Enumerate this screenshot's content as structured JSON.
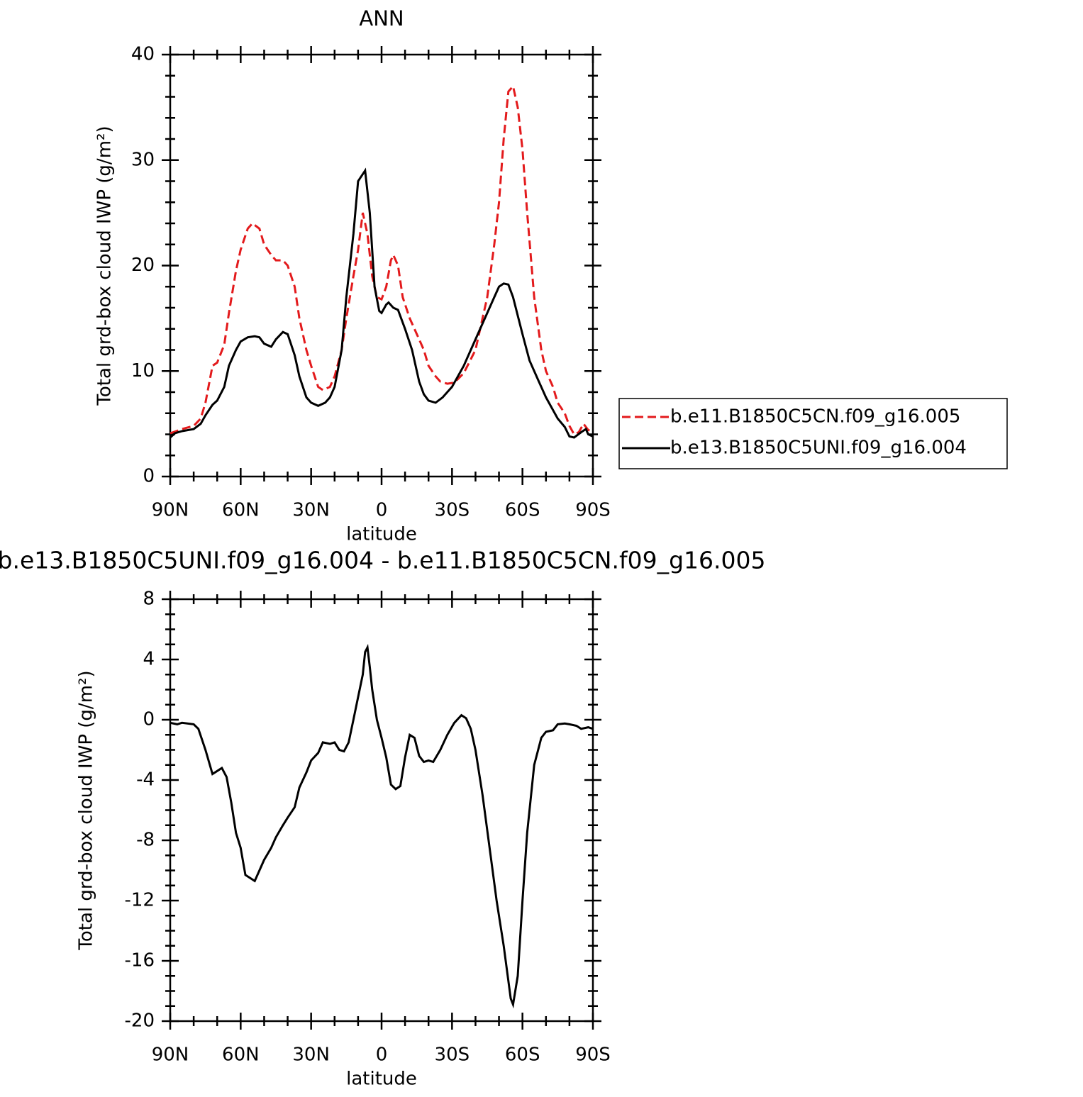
{
  "chart_data": [
    {
      "type": "line",
      "title": "ANN",
      "x_label": "latitude",
      "y_label": "Total grd-box cloud IWP (g/m²)",
      "xlim": [
        90,
        -90
      ],
      "xticks": [
        {
          "value": 90,
          "label": "90N"
        },
        {
          "value": 60,
          "label": "60N"
        },
        {
          "value": 30,
          "label": "30N"
        },
        0,
        {
          "value": -30,
          "label": "30S"
        },
        {
          "value": -60,
          "label": "60S"
        },
        {
          "value": -90,
          "label": "90S"
        }
      ],
      "ylim": [
        0,
        40
      ],
      "yticks": [
        0,
        10,
        20,
        30,
        40
      ],
      "legend": "right",
      "series": [
        {
          "name": "b.e11.B1850C5CN.f09_g16.005",
          "color": "#e31a1c",
          "dash": true,
          "x": [
            90,
            85,
            80,
            77,
            75,
            72,
            70,
            67,
            65,
            62,
            60,
            57,
            55,
            52,
            50,
            47,
            45,
            42,
            40,
            37,
            35,
            32,
            30,
            27,
            25,
            22,
            20,
            17,
            15,
            12,
            10,
            8,
            6,
            4,
            2,
            0,
            -2,
            -4,
            -5,
            -7,
            -9,
            -12,
            -15,
            -18,
            -20,
            -23,
            -25,
            -28,
            -31,
            -35,
            -40,
            -45,
            -48,
            -50,
            -52,
            -54,
            -56,
            -58,
            -60,
            -62,
            -65,
            -68,
            -70,
            -73,
            -75,
            -78,
            -80,
            -82,
            -84,
            -86,
            -88,
            -90
          ],
          "values": [
            4.1,
            4.5,
            4.8,
            5.5,
            7,
            10.5,
            10.8,
            12.5,
            15.5,
            19.5,
            21.5,
            23.5,
            24,
            23.5,
            22,
            21,
            20.5,
            20.5,
            20,
            18,
            15,
            12,
            10.5,
            8.5,
            8.2,
            8.5,
            9.5,
            12,
            15,
            19,
            21.5,
            25,
            23,
            19,
            17,
            16.8,
            18,
            20.5,
            21,
            20,
            17,
            15,
            13.5,
            12,
            10.5,
            9.5,
            9,
            8.8,
            8.9,
            9.8,
            12,
            17,
            22,
            26,
            32,
            36.5,
            37,
            35,
            31,
            25,
            17,
            12,
            10,
            8.5,
            7,
            6,
            4.8,
            4,
            4.2,
            5,
            4.4,
            4.3
          ]
        },
        {
          "name": "b.e13.B1850C5UNI.f09_g16.004",
          "color": "#000000",
          "dash": false,
          "x": [
            90,
            88,
            85,
            80,
            77,
            75,
            72,
            70,
            67,
            65,
            62,
            60,
            57,
            54,
            52,
            50,
            47,
            45,
            42,
            40,
            37,
            35,
            32,
            30,
            27,
            24,
            22,
            20,
            17,
            15,
            12,
            10,
            7,
            5,
            3,
            1,
            0,
            -2,
            -3,
            -5,
            -7,
            -10,
            -13,
            -16,
            -18,
            -20,
            -23,
            -26,
            -30,
            -35,
            -40,
            -45,
            -48,
            -50,
            -52,
            -54,
            -56,
            -60,
            -63,
            -67,
            -70,
            -75,
            -78,
            -80,
            -82,
            -85,
            -87,
            -88,
            -90
          ],
          "values": [
            3.7,
            4.1,
            4.3,
            4.5,
            5,
            5.8,
            6.8,
            7.2,
            8.5,
            10.5,
            12,
            12.8,
            13.2,
            13.3,
            13.2,
            12.6,
            12.3,
            13,
            13.7,
            13.5,
            11.5,
            9.5,
            7.5,
            7,
            6.7,
            7,
            7.5,
            8.5,
            12,
            17,
            23,
            28,
            29,
            25,
            18,
            15.7,
            15.5,
            16.3,
            16.5,
            16,
            15.8,
            14,
            12,
            9,
            7.8,
            7.2,
            7,
            7.5,
            8.5,
            10.5,
            13,
            15.5,
            17,
            18,
            18.3,
            18.2,
            17,
            13.5,
            11,
            9,
            7.5,
            5.5,
            4.7,
            3.8,
            3.7,
            4.2,
            4.5,
            4,
            3.8
          ]
        }
      ]
    },
    {
      "type": "line",
      "title": "b.e13.B1850C5UNI.f09_g16.004 - b.e11.B1850C5CN.f09_g16.005",
      "x_label": "latitude",
      "y_label": "Total grd-box cloud IWP (g/m²)",
      "xlim": [
        90,
        -90
      ],
      "xticks": [
        {
          "value": 90,
          "label": "90N"
        },
        {
          "value": 60,
          "label": "60N"
        },
        {
          "value": 30,
          "label": "30N"
        },
        0,
        {
          "value": -30,
          "label": "30S"
        },
        {
          "value": -60,
          "label": "60S"
        },
        {
          "value": -90,
          "label": "90S"
        }
      ],
      "ylim": [
        -20,
        8
      ],
      "yticks": [
        -20,
        -16,
        -12,
        -8,
        -4,
        0,
        4,
        8
      ],
      "series": [
        {
          "color": "#000000",
          "dash": false,
          "x": [
            90,
            87,
            85,
            80,
            78,
            75,
            72,
            70,
            68,
            66,
            64,
            62,
            60,
            58,
            56,
            54,
            52,
            50,
            47,
            45,
            42,
            40,
            37,
            35,
            32,
            30,
            27,
            25,
            22,
            20,
            18,
            16,
            14,
            12,
            10,
            8,
            7,
            6,
            5,
            4,
            2,
            0,
            -2,
            -4,
            -6,
            -8,
            -10,
            -12,
            -14,
            -16,
            -18,
            -20,
            -22,
            -25,
            -28,
            -31,
            -34,
            -36,
            -38,
            -40,
            -43,
            -46,
            -49,
            -52,
            -55,
            -56,
            -58,
            -60,
            -62,
            -65,
            -68,
            -70,
            -73,
            -75,
            -78,
            -80,
            -83,
            -85,
            -88,
            -90
          ],
          "values": [
            -0.2,
            -0.3,
            -0.2,
            -0.3,
            -0.6,
            -2,
            -3.6,
            -3.4,
            -3.2,
            -3.8,
            -5.5,
            -7.5,
            -8.5,
            -10.3,
            -10.5,
            -10.7,
            -10,
            -9.3,
            -8.5,
            -7.8,
            -7,
            -6.5,
            -5.8,
            -4.5,
            -3.5,
            -2.7,
            -2.2,
            -1.5,
            -1.6,
            -1.5,
            -2,
            -2.1,
            -1.5,
            0,
            1.5,
            3,
            4.5,
            4.8,
            3.5,
            2,
            0,
            -1.2,
            -2.5,
            -4.3,
            -4.6,
            -4.4,
            -2.5,
            -1,
            -1.2,
            -2.4,
            -2.8,
            -2.7,
            -2.8,
            -2,
            -1,
            -0.2,
            0.3,
            0.1,
            -0.6,
            -2,
            -5,
            -8.5,
            -12,
            -15,
            -18.5,
            -18.9,
            -17,
            -12,
            -7.5,
            -3,
            -1.2,
            -0.8,
            -0.7,
            -0.3,
            -0.25,
            -0.3,
            -0.4,
            -0.6,
            -0.5,
            -0.6
          ]
        }
      ]
    }
  ]
}
